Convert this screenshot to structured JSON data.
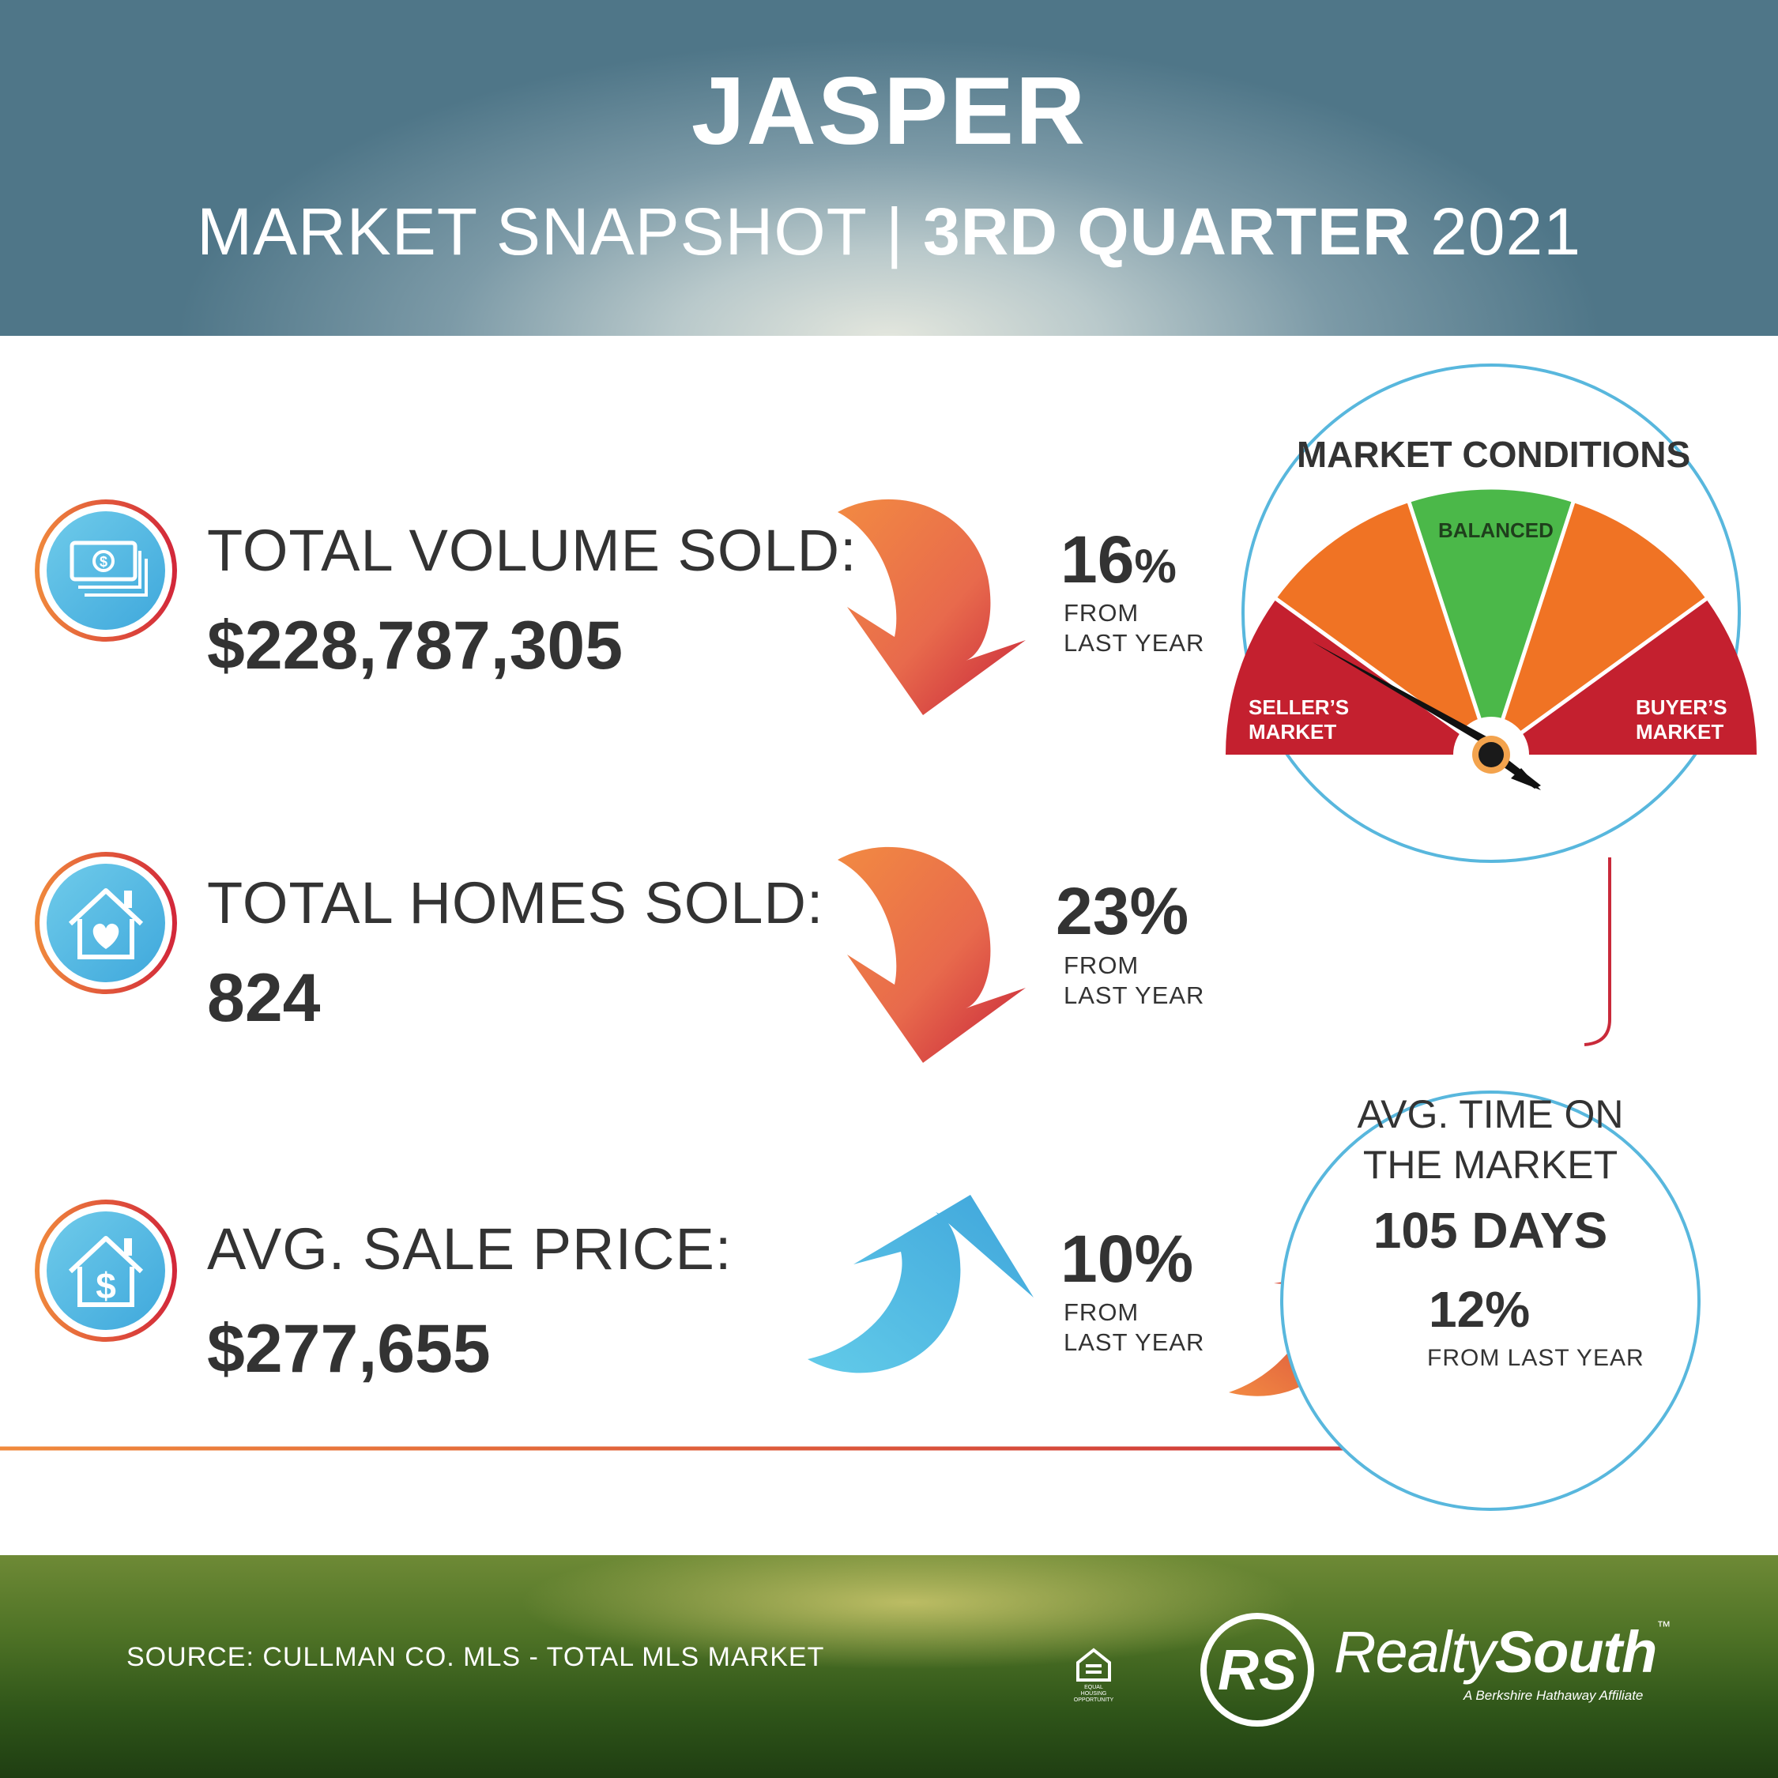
{
  "header": {
    "title": "JASPER",
    "subtitle_left": "MARKET SNAPSHOT",
    "subtitle_divider": "|",
    "subtitle_period": "3RD QUARTER",
    "subtitle_year": "2021"
  },
  "stats": [
    {
      "icon": "money-bills-icon",
      "label": "TOTAL VOLUME SOLD:",
      "value": "$228,787,305",
      "change_pct": "16",
      "change_unit": "%",
      "direction": "down",
      "from_line1": "FROM",
      "from_line2": "LAST YEAR"
    },
    {
      "icon": "house-heart-icon",
      "label": "TOTAL HOMES SOLD:",
      "value": "824",
      "change_pct": "23",
      "change_unit": "%",
      "direction": "down",
      "from_line1": "FROM",
      "from_line2": "LAST YEAR"
    },
    {
      "icon": "house-dollar-icon",
      "label": "AVG. SALE PRICE:",
      "value": "$277,655",
      "change_pct": "10",
      "change_unit": "%",
      "direction": "up",
      "from_line1": "FROM",
      "from_line2": "LAST YEAR"
    }
  ],
  "market_conditions": {
    "title": "MARKET CONDITIONS",
    "segments": [
      {
        "label_line1": "SELLER’S",
        "label_line2": "MARKET",
        "color": "#c4202f"
      },
      {
        "label_line1": "",
        "label_line2": "",
        "color": "#f07324"
      },
      {
        "label_line1": "BALANCED",
        "label_line2": "",
        "color": "#4bb849"
      },
      {
        "label_line1": "",
        "label_line2": "",
        "color": "#f07324"
      },
      {
        "label_line1": "BUYER’S",
        "label_line2": "MARKET",
        "color": "#c4202f"
      }
    ],
    "needle_reading": "SELLER’S MARKET"
  },
  "time_on_market": {
    "title_line1": "AVG. TIME ON",
    "title_line2": "THE MARKET",
    "value": "105 DAYS",
    "change_pct": "12",
    "change_unit": "%",
    "direction": "up",
    "from_text": "FROM LAST YEAR"
  },
  "footer": {
    "source": "SOURCE: CULLMAN CO. MLS - TOTAL MLS MARKET",
    "equal_housing_text": "EQUAL HOUSING OPPORTUNITY",
    "logo_monogram": "RS",
    "brand_part1": "Realty",
    "brand_part2": "South",
    "brand_tm": "™",
    "brand_tagline": "A Berkshire Hathaway Affiliate"
  },
  "colors": {
    "accent_orange": "#f08a3c",
    "accent_red": "#d2263a",
    "accent_blue": "#58b7dd",
    "text_dark": "#333333"
  }
}
